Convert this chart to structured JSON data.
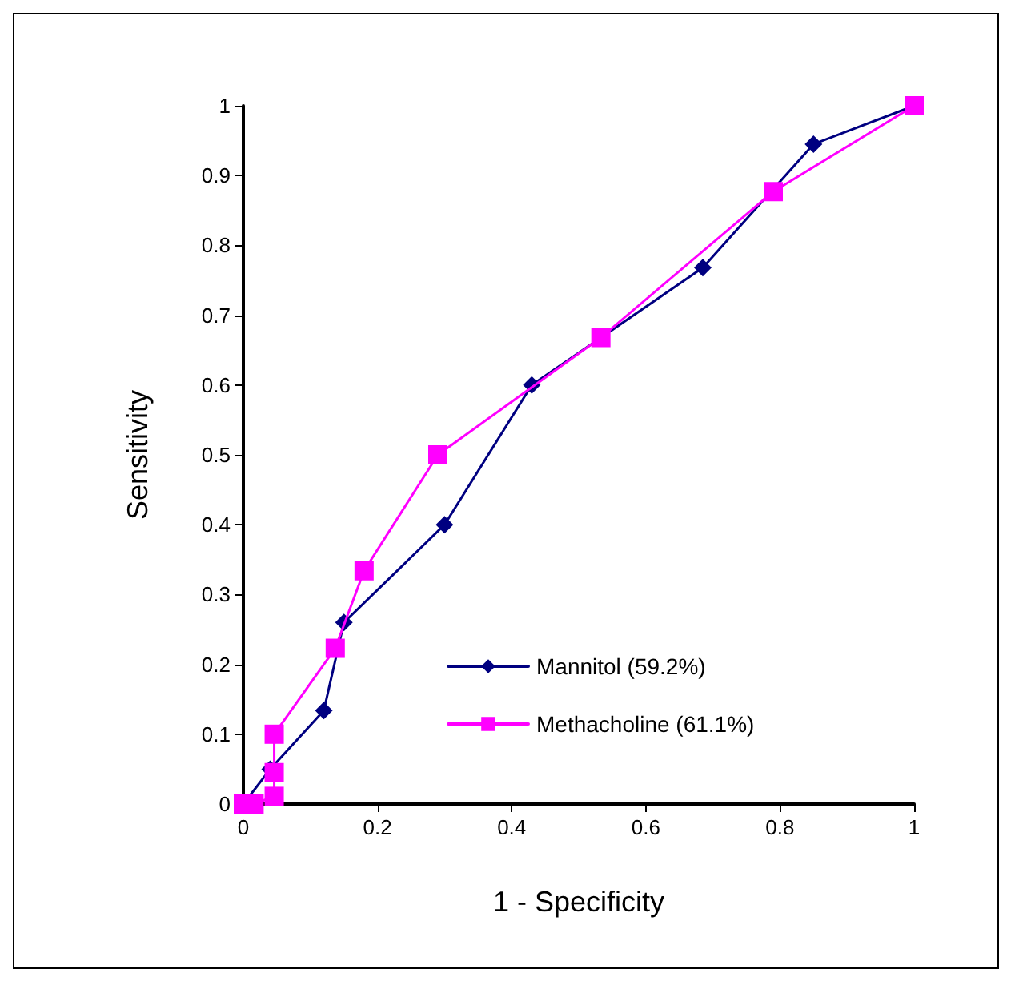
{
  "chart_data": {
    "type": "line",
    "xlabel": "1 - Specificity",
    "ylabel": "Sensitivity",
    "xlim": [
      0,
      1
    ],
    "xticks": [
      0,
      0.2,
      0.4,
      0.6,
      0.8,
      1
    ],
    "ylim": [
      0,
      1
    ],
    "yticks": [
      0,
      0.1,
      0.2,
      0.3,
      0.4,
      0.5,
      0.6,
      0.7,
      0.8,
      0.9,
      1
    ],
    "grid": false,
    "legend": "bottom",
    "series": [
      {
        "name": "Mannitol (59.2%)",
        "color": "#000080",
        "marker": "diamond",
        "x": [
          0,
          0.04,
          0.12,
          0.15,
          0.3,
          0.43,
          0.685,
          0.85,
          1
        ],
        "values": [
          0,
          0.05,
          0.134,
          0.26,
          0.4,
          0.6,
          0.768,
          0.945,
          1
        ]
      },
      {
        "name": "Methacholine (61.1%)",
        "color": "#ff00ff",
        "marker": "square",
        "x": [
          0,
          0.016,
          0.046,
          0.046,
          0.046,
          0.137,
          0.18,
          0.29,
          0.533,
          0.79,
          1
        ],
        "values": [
          0,
          0,
          0.011,
          0.045,
          0.1,
          0.223,
          0.334,
          0.5,
          0.668,
          0.877,
          1
        ]
      }
    ]
  }
}
